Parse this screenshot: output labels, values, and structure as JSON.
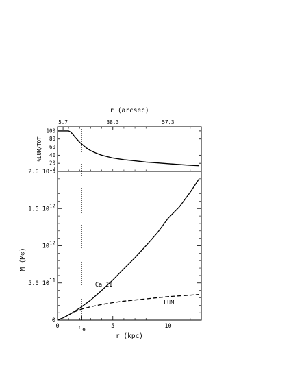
{
  "chart_data": [
    {
      "type": "line",
      "panel": "top",
      "ylabel": "%LUM/TOT",
      "top_axis_label": "r (arcsec)",
      "top_tick_labels": [
        {
          "label": "5.7",
          "r_kpc": 0.5
        },
        {
          "label": "38.3",
          "r_kpc": 5.0
        },
        {
          "label": "57.3",
          "r_kpc": 10.0
        }
      ],
      "xlim": [
        0,
        13
      ],
      "ylim": [
        0,
        110
      ],
      "yticks": [
        0,
        20,
        40,
        60,
        80,
        100
      ],
      "series": [
        {
          "style": "solid",
          "x": [
            0,
            0.5,
            1.0,
            1.2,
            1.4,
            1.6,
            1.8,
            2.0,
            2.3,
            2.6,
            3.0,
            3.5,
            4.0,
            5.0,
            6.0,
            7.0,
            8.0,
            9.0,
            10.0,
            11.0,
            12.0,
            12.8
          ],
          "y": [
            100,
            100,
            100,
            97,
            91,
            84,
            78,
            72,
            65,
            58,
            51,
            45,
            40,
            33,
            29,
            26,
            23,
            21,
            19,
            17,
            15,
            14
          ]
        }
      ],
      "reference_line": {
        "x": 2.2,
        "style": "dotted"
      }
    },
    {
      "type": "line",
      "panel": "bottom",
      "xlabel": "r (kpc)",
      "ylabel": "M (M⊙)",
      "xlim": [
        0,
        13
      ],
      "ylim": [
        0,
        2000000000000.0
      ],
      "xticks": [
        0,
        5,
        10
      ],
      "xtick_labels": [
        "0",
        "5",
        "10"
      ],
      "extra_xtick": {
        "x": 2.2,
        "label": "r",
        "subscript": "e"
      },
      "ytick_labels": [
        {
          "value": 0,
          "mantissa": "0",
          "exponent": ""
        },
        {
          "value": 500000000000.0,
          "mantissa": "5.0 10",
          "exponent": "11"
        },
        {
          "value": 1000000000000.0,
          "mantissa": "10",
          "exponent": "12"
        },
        {
          "value": 1500000000000.0,
          "mantissa": "1.5 10",
          "exponent": "12"
        },
        {
          "value": 2000000000000.0,
          "mantissa": "2.0 10",
          "exponent": "12"
        }
      ],
      "series": [
        {
          "name": "Ca II",
          "style": "solid",
          "x": [
            0,
            0.5,
            1.0,
            1.5,
            2.0,
            2.5,
            3.0,
            4.0,
            5.0,
            6.0,
            7.0,
            8.0,
            9.0,
            10.0,
            11.0,
            12.0,
            12.8
          ],
          "y": [
            0,
            30000000000.0,
            70000000000.0,
            115000000000.0,
            160000000000.0,
            215000000000.0,
            270000000000.0,
            400000000000.0,
            540000000000.0,
            690000000000.0,
            840000000000.0,
            1000000000000.0,
            1170000000000.0,
            1370000000000.0,
            1520000000000.0,
            1720000000000.0,
            1900000000000.0
          ]
        },
        {
          "name": "LUM",
          "style": "dashed",
          "x": [
            0,
            0.5,
            1.0,
            1.5,
            2.0,
            2.5,
            3.0,
            4.0,
            5.0,
            6.0,
            7.0,
            8.0,
            9.0,
            10.0,
            11.0,
            12.0,
            12.8
          ],
          "y": [
            0,
            30000000000.0,
            70000000000.0,
            110000000000.0,
            140000000000.0,
            160000000000.0,
            180000000000.0,
            210000000000.0,
            235000000000.0,
            255000000000.0,
            270000000000.0,
            285000000000.0,
            300000000000.0,
            315000000000.0,
            325000000000.0,
            335000000000.0,
            345000000000.0
          ]
        }
      ],
      "annotations": [
        {
          "text": "Ca II",
          "x": 3.4,
          "y": 450000000000.0
        },
        {
          "text": "LUM",
          "x": 9.6,
          "y": 210000000000.0
        }
      ],
      "reference_line": {
        "x": 2.2,
        "style": "dotted"
      }
    }
  ]
}
